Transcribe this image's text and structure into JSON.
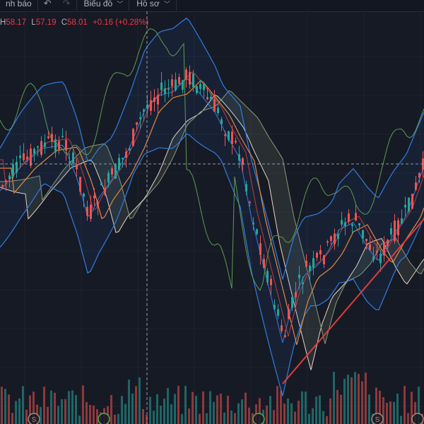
{
  "toolbar": {
    "alert_label": "nh báo",
    "undo_icon": "undo-icon",
    "redo_icon": "redo-icon",
    "chart_type_label": "Biểu đồ",
    "profile_label": "Hồ sơ",
    "chevron_icon": "chevron-down-icon"
  },
  "ohlc": {
    "h_label": "H",
    "h_value": "58.17",
    "l_label": "L",
    "l_value": "57.19",
    "c_label": "C",
    "c_value": "58.01",
    "change": "+0.16 (+0.28%)"
  },
  "colors": {
    "background": "#161a25",
    "up": "#26a69a",
    "down": "#ef5350",
    "bollinger": "#2f7de1",
    "ma_orange": "#e6883a",
    "ma_red": "#c23b3b",
    "cloud_line": "#e8d6c4",
    "oscillator": "#5d9a52",
    "trendline": "#e03c3c",
    "crosshair": "#9598a1"
  },
  "markers": [
    {
      "label": "S",
      "x_frac": 0.08
    },
    {
      "label": "",
      "x_frac": 0.245
    },
    {
      "label": "",
      "x_frac": 0.61
    },
    {
      "label": "S",
      "x_frac": 0.89
    },
    {
      "label": "",
      "x_frac": 0.985
    }
  ]
}
